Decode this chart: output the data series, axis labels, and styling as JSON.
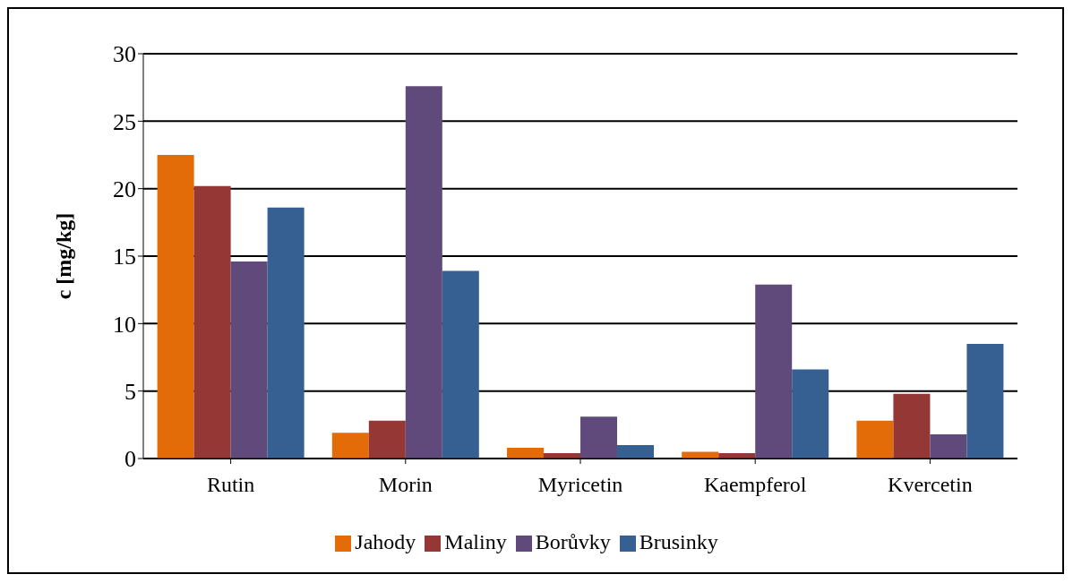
{
  "chart_data": {
    "type": "bar",
    "ylabel": "c [mg/kg]",
    "categories": [
      "Rutin",
      "Morin",
      "Myricetin",
      "Kaempferol",
      "Kvercetin"
    ],
    "series": [
      {
        "name": "Jahody",
        "color": "#e36c09",
        "values": [
          22.5,
          1.9,
          0.8,
          0.5,
          2.8
        ]
      },
      {
        "name": "Maliny",
        "color": "#953735",
        "values": [
          20.2,
          2.8,
          0.4,
          0.4,
          4.8
        ]
      },
      {
        "name": "Borůvky",
        "color": "#604a7b",
        "values": [
          14.6,
          27.6,
          3.1,
          12.9,
          1.8
        ]
      },
      {
        "name": "Brusinky",
        "color": "#376092",
        "values": [
          18.6,
          13.9,
          1.0,
          6.6,
          8.5
        ]
      }
    ],
    "ylim": [
      0,
      30
    ],
    "yticks": [
      0,
      5,
      10,
      15,
      20,
      25,
      30
    ],
    "grid": "y",
    "legend": "bottom"
  }
}
